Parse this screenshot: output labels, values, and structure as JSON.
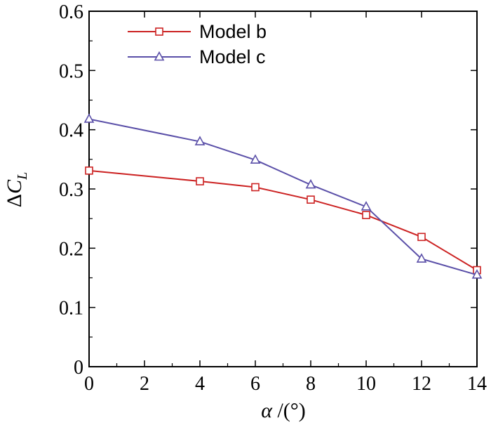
{
  "chart_data": {
    "type": "line",
    "x": [
      0,
      4,
      6,
      8,
      10,
      12,
      14
    ],
    "series": [
      {
        "name": "Model b",
        "marker": "square",
        "color": "#cc2222",
        "values": [
          0.331,
          0.313,
          0.303,
          0.282,
          0.256,
          0.219,
          0.163
        ]
      },
      {
        "name": "Model c",
        "marker": "triangle",
        "color": "#5a4fa8",
        "values": [
          0.418,
          0.38,
          0.349,
          0.307,
          0.27,
          0.182,
          0.155
        ]
      }
    ],
    "xlabel": "α /(°)",
    "ylabel": "ΔC_L",
    "xlim": [
      0,
      14
    ],
    "ylim": [
      0,
      0.6
    ],
    "xticks": [
      "0",
      "2",
      "4",
      "6",
      "8",
      "10",
      "12",
      "14"
    ],
    "yticks": [
      "0",
      "0.1",
      "0.2",
      "0.3",
      "0.4",
      "0.5",
      "0.6"
    ],
    "grid": false,
    "legend_position": "top-left"
  }
}
